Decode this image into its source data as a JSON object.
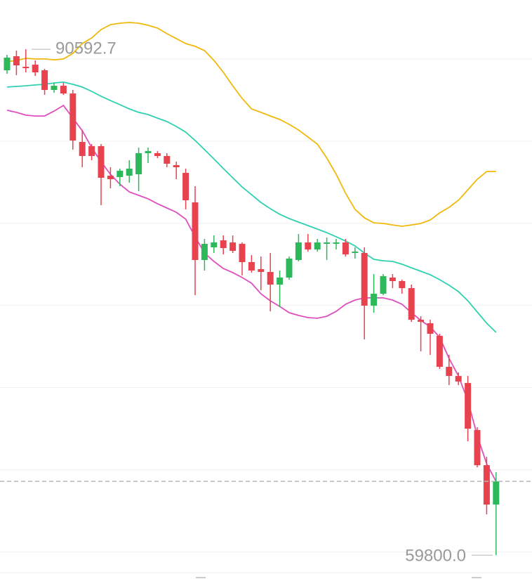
{
  "chart_data": {
    "type": "candlestick",
    "ylim": [
      58350,
      93590
    ],
    "yticks": [
      90000,
      85000,
      80000,
      75000,
      70000,
      65000,
      60000
    ],
    "grid": true,
    "up_color": "#2eb85c",
    "down_color": "#e8424f",
    "open": [
      89313,
      90168,
      89527,
      89655,
      89313,
      88115,
      88372,
      87902,
      84950,
      84694,
      84694,
      82897,
      82812,
      82897,
      82983,
      84266,
      84266,
      84095,
      83539,
      83069,
      81272,
      77765,
      78535,
      78963,
      78834,
      78749,
      77637,
      77209,
      77038,
      76268,
      76696,
      77765,
      78834,
      78407,
      78749,
      78749,
      78834,
      78193,
      78193,
      74985,
      75712,
      76696,
      76482,
      76054,
      74130,
      73916,
      73146,
      71264,
      70708,
      70280,
      67415,
      65276,
      62881
    ],
    "high": [
      90254,
      90511,
      90592.7,
      89912,
      89399,
      88543,
      88543,
      88115,
      85678,
      84822,
      84822,
      83411,
      83325,
      83838,
      84608,
      84608,
      84394,
      84266,
      83753,
      83325,
      82256,
      79048,
      79262,
      79262,
      79262,
      78834,
      78064,
      77979,
      78193,
      77124,
      77979,
      79348,
      79348,
      79048,
      79134,
      79048,
      79048,
      78535,
      78535,
      76910,
      76910,
      76910,
      76568,
      76268,
      74343,
      74130,
      73274,
      71991,
      70922,
      70708,
      67586,
      65789,
      64849
    ],
    "low": [
      89099,
      89014,
      89185,
      88971,
      87816,
      87944,
      87816,
      84480,
      83411,
      83838,
      81101,
      82128,
      82256,
      82470,
      81957,
      83667,
      83967,
      83411,
      82684,
      80845,
      75627,
      77124,
      78193,
      78107,
      78193,
      76824,
      76995,
      75926,
      74643,
      74900,
      76568,
      77680,
      78278,
      78278,
      77765,
      78407,
      77979,
      77851,
      72932,
      74557,
      75627,
      76054,
      75712,
      74001,
      72205,
      71991,
      71136,
      70152,
      70152,
      66730,
      65148,
      62282,
      59800
    ],
    "close": [
      90083,
      89612,
      89441,
      89185,
      88115,
      88372,
      87902,
      85036,
      84095,
      84095,
      82769,
      82684,
      83197,
      83325,
      84266,
      84394,
      84095,
      83625,
      83411,
      81401,
      77765,
      78749,
      78834,
      78492,
      78321,
      77637,
      77124,
      77038,
      76268,
      76696,
      77851,
      78834,
      78407,
      78834,
      78834,
      78834,
      78107,
      78278,
      74985,
      75712,
      76781,
      76482,
      76054,
      74130,
      74001,
      73274,
      71264,
      70708,
      70366,
      67500,
      65276,
      62881,
      64293
    ],
    "bands": [
      {
        "color": "#f0b90b",
        "values": [
          89830,
          89910,
          90040,
          90000,
          90000,
          89950,
          90000,
          90340,
          90940,
          91280,
          91790,
          92090,
          92180,
          92220,
          92180,
          92050,
          91880,
          91540,
          91240,
          90940,
          90770,
          90510,
          89910,
          89190,
          88370,
          87600,
          86960,
          86750,
          86530,
          86320,
          86020,
          85680,
          85250,
          84820,
          83970,
          82980,
          81830,
          80850,
          80330,
          80030,
          79990,
          79900,
          79820,
          79900,
          79990,
          80200,
          80630,
          80970,
          81400,
          82040,
          82680,
          83150,
          83150
        ]
      },
      {
        "color": "#2fd1b0",
        "values": [
          88290,
          88330,
          88370,
          88420,
          88460,
          88540,
          88590,
          88460,
          88290,
          88030,
          87730,
          87470,
          87220,
          86960,
          86750,
          86620,
          86400,
          86190,
          85890,
          85550,
          85040,
          84480,
          83920,
          83330,
          82770,
          82210,
          81740,
          81270,
          80890,
          80550,
          80290,
          80070,
          79860,
          79650,
          79430,
          79180,
          78920,
          78620,
          78190,
          77810,
          77720,
          77680,
          77510,
          77290,
          77080,
          76870,
          76570,
          76230,
          75840,
          75280,
          74600,
          73920,
          73360
        ]
      },
      {
        "color": "#df4fbd",
        "values": [
          86880,
          86750,
          86580,
          86530,
          86530,
          86830,
          87170,
          86400,
          85640,
          84610,
          83750,
          82980,
          82380,
          81910,
          81700,
          81490,
          81190,
          80930,
          80670,
          80250,
          79180,
          78190,
          77680,
          77250,
          77000,
          76700,
          76350,
          75710,
          75280,
          74940,
          74560,
          74390,
          74260,
          74220,
          74340,
          74640,
          75070,
          75330,
          75460,
          75460,
          75460,
          75330,
          75070,
          74560,
          74090,
          73700,
          73060,
          71780,
          70710,
          69210,
          67070,
          65360,
          64290
        ]
      }
    ],
    "annotations": [
      {
        "value": 90592.7,
        "label": "90592.7"
      },
      {
        "value": 59800,
        "label": "59800.0"
      }
    ]
  }
}
